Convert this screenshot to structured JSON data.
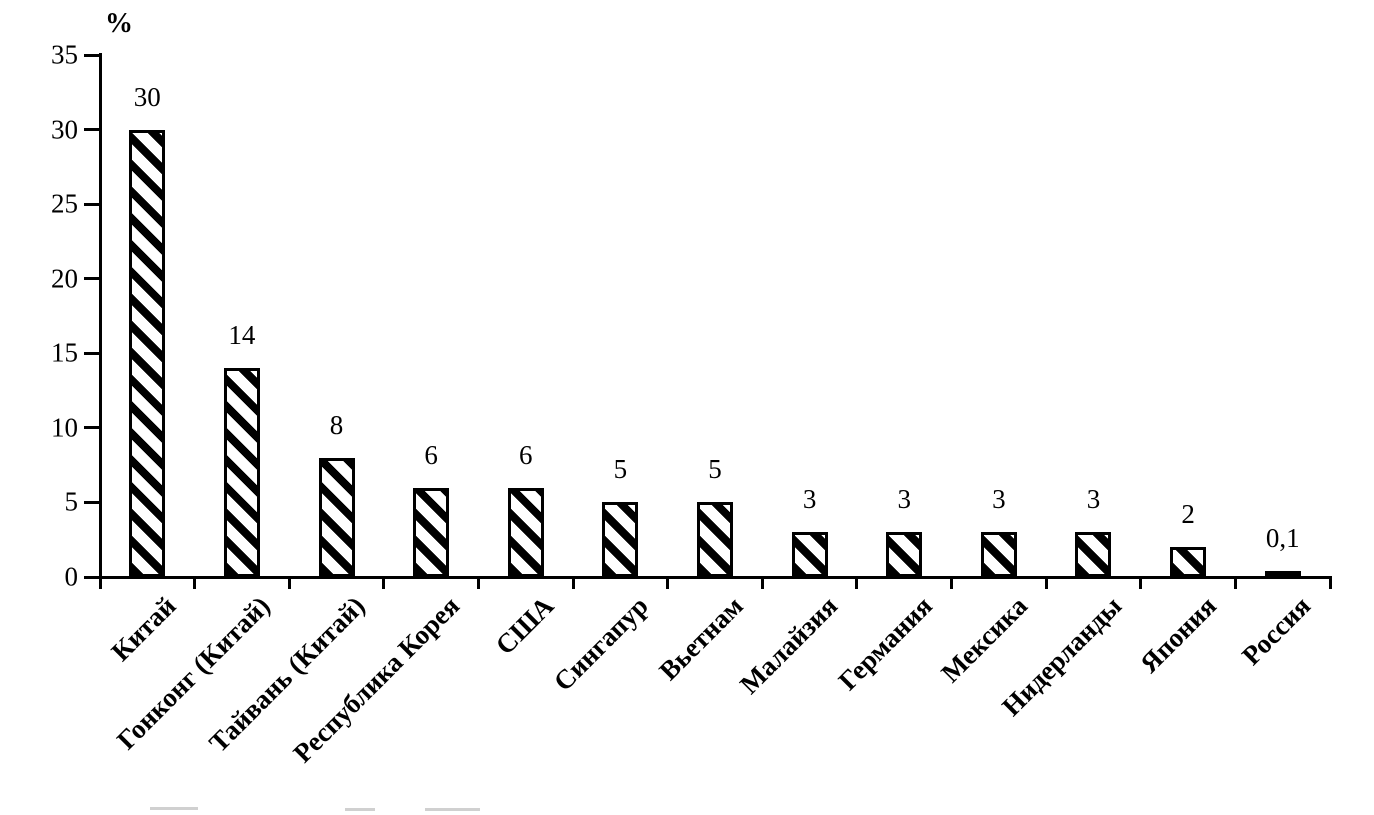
{
  "chart_data": {
    "type": "bar",
    "title": "",
    "xlabel": "",
    "ylabel": "%",
    "categories": [
      "Китай",
      "Гонконг (Китай)",
      "Тайвань (Китай)",
      "Республика Корея",
      "США",
      "Сингапур",
      "Вьетнам",
      "Малайзия",
      "Германия",
      "Мексика",
      "Нидерланды",
      "Япония",
      "Россия"
    ],
    "values": [
      30,
      14,
      8,
      6,
      6,
      5,
      5,
      3,
      3,
      3,
      3,
      2,
      0.1
    ],
    "value_labels": [
      "30",
      "14",
      "8",
      "6",
      "6",
      "5",
      "5",
      "3",
      "3",
      "3",
      "3",
      "2",
      "0,1"
    ],
    "y_ticks": [
      0,
      5,
      10,
      15,
      20,
      25,
      30,
      35
    ],
    "y_tick_labels": [
      "0",
      "5",
      "10",
      "15",
      "20",
      "25",
      "30",
      "35"
    ],
    "ylim": [
      0,
      35
    ],
    "grid": false,
    "legend": false,
    "bar_pattern": "diagonal-hatch",
    "colors": {
      "bar_outline": "#000000",
      "bar_fill": "#ffffff",
      "hatch": "#000000",
      "background": "#ffffff",
      "text": "#000000"
    }
  }
}
